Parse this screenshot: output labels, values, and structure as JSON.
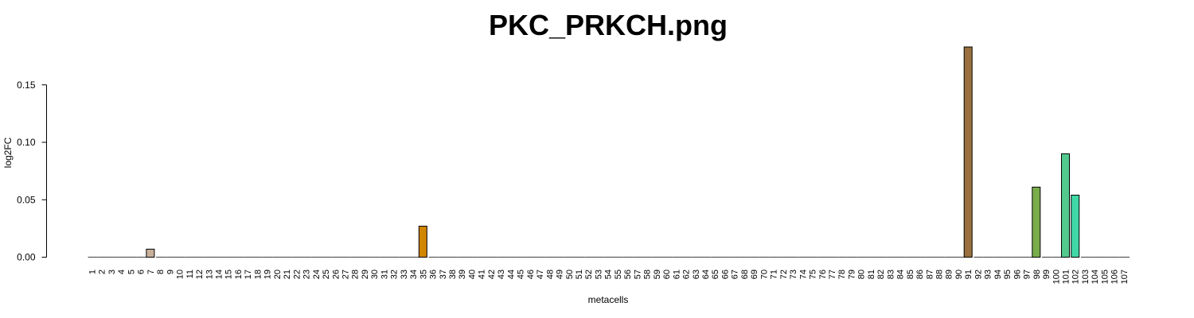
{
  "chart_data": {
    "type": "bar",
    "title": "PKC_PRKCH.png",
    "xlabel": "metacells",
    "ylabel": "log2FC",
    "ylim": [
      0,
      0.18
    ],
    "yticks": [
      "0.00",
      "0.05",
      "0.10",
      "0.15"
    ],
    "categories": [
      "1",
      "2",
      "3",
      "4",
      "5",
      "6",
      "7",
      "8",
      "9",
      "10",
      "11",
      "12",
      "13",
      "14",
      "15",
      "16",
      "17",
      "18",
      "19",
      "20",
      "21",
      "22",
      "23",
      "24",
      "25",
      "26",
      "27",
      "28",
      "29",
      "30",
      "31",
      "32",
      "33",
      "34",
      "35",
      "36",
      "37",
      "38",
      "39",
      "40",
      "41",
      "42",
      "43",
      "44",
      "45",
      "46",
      "47",
      "48",
      "49",
      "50",
      "51",
      "52",
      "53",
      "54",
      "55",
      "56",
      "57",
      "58",
      "59",
      "60",
      "61",
      "62",
      "63",
      "64",
      "65",
      "66",
      "67",
      "68",
      "69",
      "70",
      "71",
      "72",
      "73",
      "74",
      "75",
      "76",
      "77",
      "78",
      "79",
      "80",
      "81",
      "82",
      "83",
      "84",
      "85",
      "86",
      "87",
      "88",
      "89",
      "90",
      "91",
      "92",
      "93",
      "94",
      "95",
      "96",
      "97",
      "98",
      "99",
      "100",
      "101",
      "102",
      "103",
      "104",
      "105",
      "106",
      "107"
    ],
    "values": [
      0,
      0,
      0,
      0,
      0,
      0,
      0.007,
      0,
      0,
      0,
      0,
      0,
      0,
      0,
      0,
      0,
      0,
      0,
      0,
      0,
      0,
      0,
      0,
      0,
      0,
      0,
      0,
      0,
      0,
      0,
      0,
      0,
      0,
      0,
      0.027,
      0,
      0,
      0,
      0,
      0,
      0,
      0,
      0,
      0,
      0,
      0,
      0,
      0,
      0,
      0,
      0,
      0,
      0,
      0,
      0,
      0,
      0,
      0,
      0,
      0,
      0,
      0,
      0,
      0,
      0,
      0,
      0,
      0,
      0,
      0,
      0,
      0,
      0,
      0,
      0,
      0,
      0,
      0,
      0,
      0,
      0,
      0,
      0,
      0,
      0,
      0,
      0,
      0,
      0,
      0,
      0.183,
      0,
      0,
      0,
      0,
      0,
      0,
      0.061,
      0,
      0,
      0.09,
      0.054,
      0,
      0,
      0,
      0,
      0
    ],
    "bar_colors": {
      "7": "#c8b09a",
      "35": "#d18500",
      "91": "#9a703f",
      "98": "#79ad4c",
      "101": "#53c98e",
      "102": "#3fd8a6"
    },
    "grid": false,
    "legend": "none"
  }
}
